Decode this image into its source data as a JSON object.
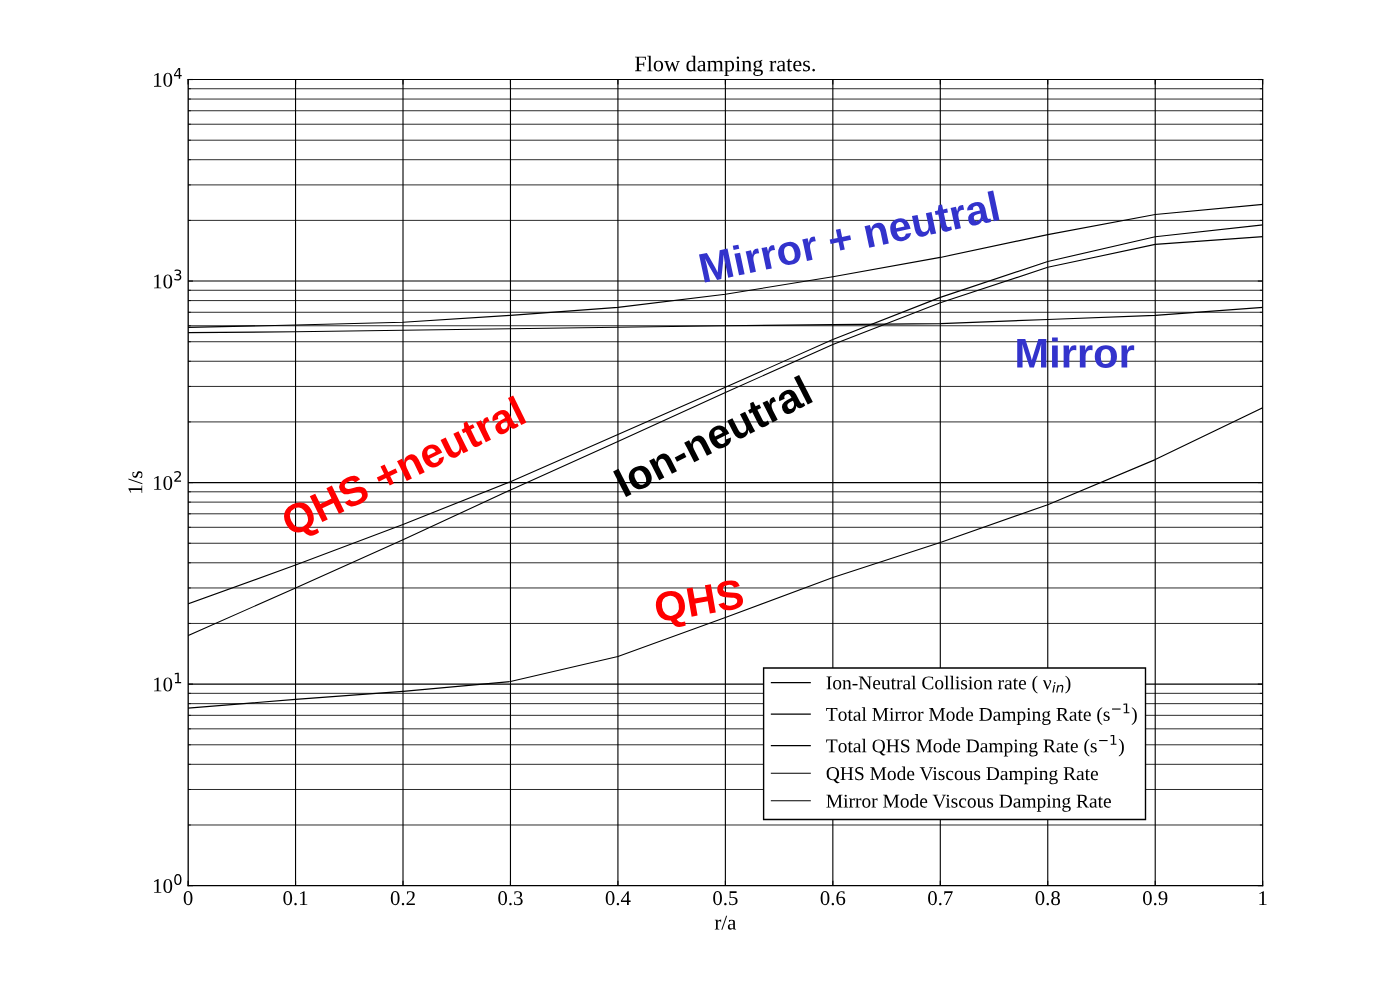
{
  "chart_data": {
    "type": "line",
    "title": "Flow damping rates.",
    "xlabel": "r/a",
    "ylabel": "1/s",
    "x": [
      0,
      0.1,
      0.2,
      0.3,
      0.4,
      0.5,
      0.6,
      0.7,
      0.8,
      0.9,
      1.0
    ],
    "series": [
      {
        "name": "Ion-Neutral Collision rate ( ν$_{in}$)",
        "color": "#000000",
        "values": [
          17.4,
          30,
          52,
          92,
          160,
          280,
          484,
          780,
          1170,
          1520,
          1660
        ]
      },
      {
        "name": "Total Mirror Mode Damping Rate (s$^{−1}$)",
        "color": "#000000",
        "values": [
          589,
          605,
          625,
          676,
          740,
          860,
          1050,
          1310,
          1700,
          2140,
          2400
        ]
      },
      {
        "name": "Total QHS Mode Damping Rate (s$^{−1}$)",
        "color": "#000000",
        "values": [
          25,
          39,
          62,
          101,
          173,
          297,
          513,
          830,
          1250,
          1660,
          1900
        ]
      },
      {
        "name": "QHS Mode Viscous Damping Rate",
        "color": "#000000",
        "values": [
          7.6,
          8.4,
          9.2,
          10.3,
          13.7,
          21.4,
          33.8,
          50.4,
          77.7,
          130,
          235
        ]
      },
      {
        "name": "Mirror Mode Viscous Damping Rate",
        "color": "#000000",
        "values": [
          555,
          560,
          570,
          580,
          590,
          600,
          608,
          615,
          645,
          676,
          740
        ]
      }
    ],
    "log": "y",
    "xlim": [
      0,
      1
    ],
    "ylim": [
      1,
      10000
    ],
    "xticks": [
      0,
      0.1,
      0.2,
      0.3,
      0.4,
      0.5,
      0.6,
      0.7,
      0.8,
      0.9,
      1
    ],
    "yticks": [
      {
        "value": 1,
        "label": "10$^{0}$"
      },
      {
        "value": 10,
        "label": "10$^{1}$"
      },
      {
        "value": 100,
        "label": "10$^{2}$"
      },
      {
        "value": 1000,
        "label": "10$^{3}$"
      },
      {
        "value": 10000,
        "label": "10$^{4}$"
      }
    ],
    "grid": true,
    "legend": "bottom right",
    "line_style": "solid",
    "marker": "none",
    "annotations": [
      "Mirror + neutral",
      "Mirror",
      "Ion-neutral",
      "QHS +neutral",
      "QHS"
    ]
  }
}
